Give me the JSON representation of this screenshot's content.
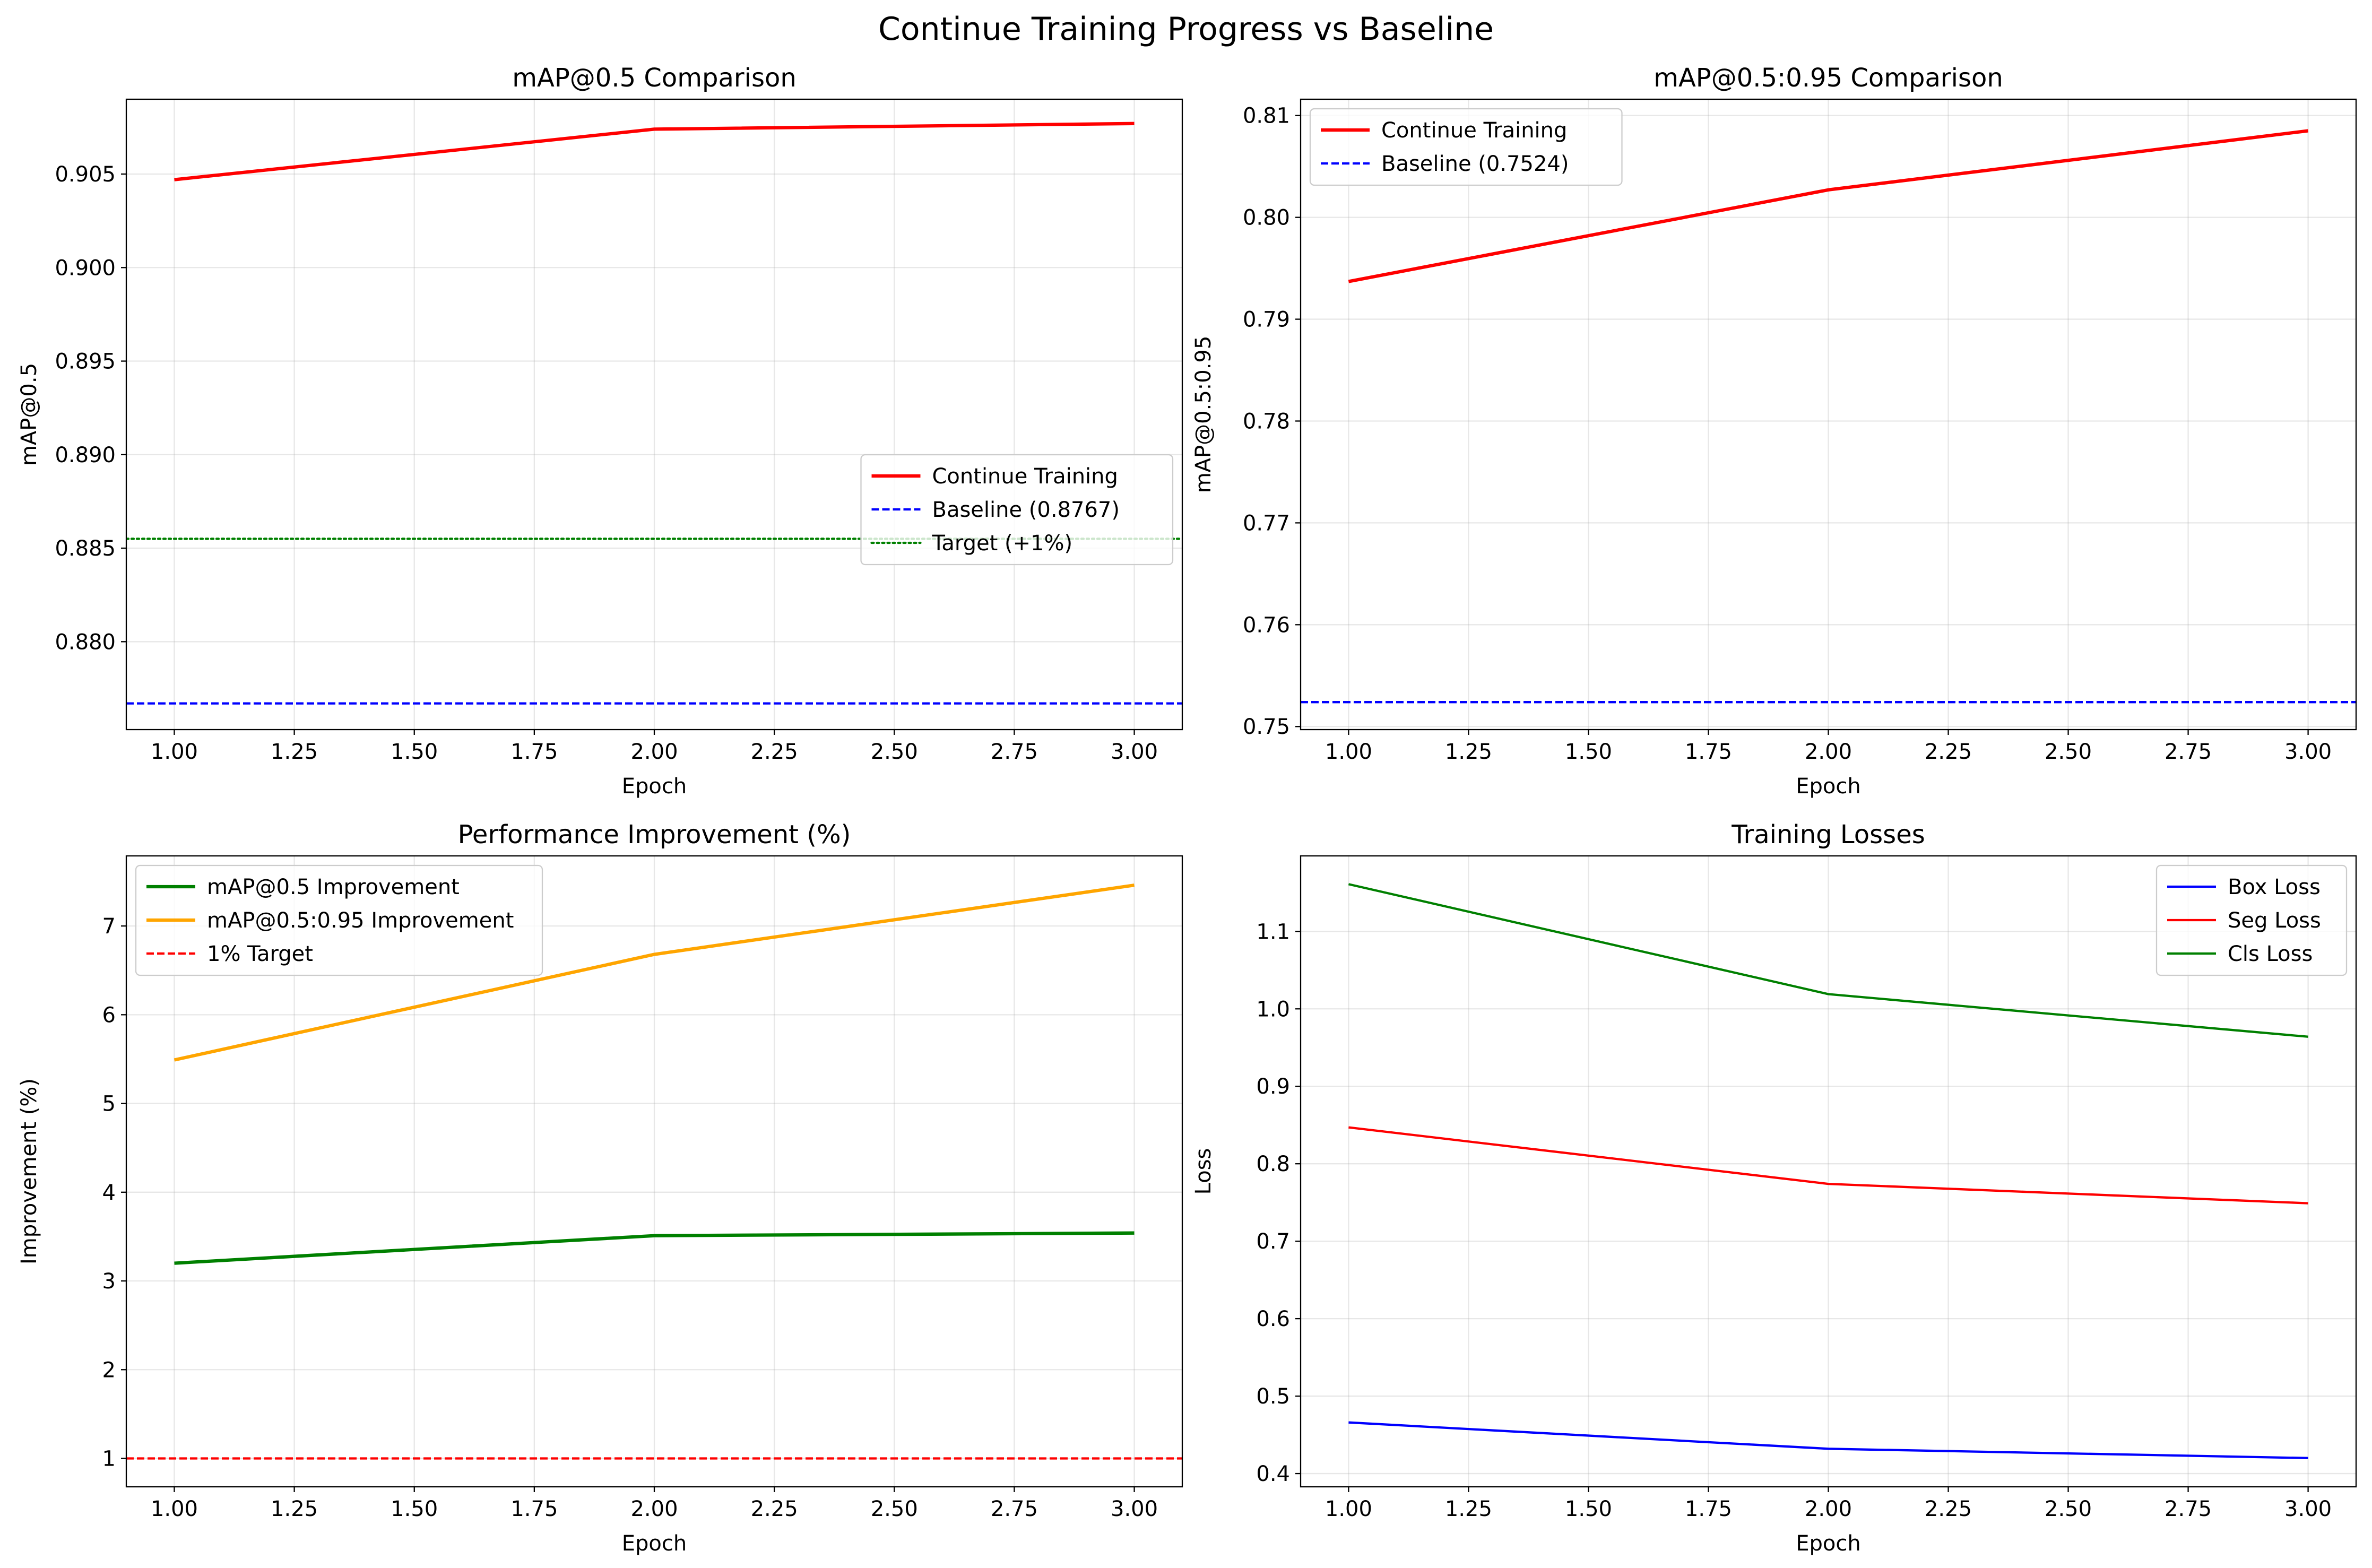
{
  "figure": {
    "title": "Continue Training Progress vs Baseline"
  },
  "chart_data": [
    {
      "type": "line",
      "title": "mAP@0.5 Comparison",
      "xlabel": "Epoch",
      "ylabel": "mAP@0.5",
      "xlim": [
        0.9,
        3.1
      ],
      "ylim": [
        0.8753,
        0.909
      ],
      "x_ticks": [
        1.0,
        1.25,
        1.5,
        1.75,
        2.0,
        2.25,
        2.5,
        2.75,
        3.0
      ],
      "x_tick_labels": [
        "1.00",
        "1.25",
        "1.50",
        "1.75",
        "2.00",
        "2.25",
        "2.50",
        "2.75",
        "3.00"
      ],
      "y_ticks": [
        0.88,
        0.885,
        0.89,
        0.895,
        0.9,
        0.905
      ],
      "y_tick_labels": [
        "0.880",
        "0.885",
        "0.890",
        "0.895",
        "0.900",
        "0.905"
      ],
      "grid": true,
      "legend_position": "center-right",
      "series": [
        {
          "name": "Continue Training",
          "x": [
            1,
            2,
            3
          ],
          "y": [
            0.9047,
            0.9074,
            0.9077
          ],
          "color": "#ff0000",
          "style": "solid",
          "width": 2.2
        },
        {
          "name": "Baseline (0.8767)",
          "hline": 0.8767,
          "color": "#0000ff",
          "style": "dashed",
          "width": 1.5
        },
        {
          "name": "Target (+1%)",
          "hline": 0.8855,
          "color": "#008000",
          "style": "dotted",
          "width": 1.5
        }
      ]
    },
    {
      "type": "line",
      "title": "mAP@0.5:0.95 Comparison",
      "xlabel": "Epoch",
      "ylabel": "mAP@0.5:0.95",
      "xlim": [
        0.9,
        3.1
      ],
      "ylim": [
        0.7497,
        0.8116
      ],
      "x_ticks": [
        1.0,
        1.25,
        1.5,
        1.75,
        2.0,
        2.25,
        2.5,
        2.75,
        3.0
      ],
      "x_tick_labels": [
        "1.00",
        "1.25",
        "1.50",
        "1.75",
        "2.00",
        "2.25",
        "2.50",
        "2.75",
        "3.00"
      ],
      "y_ticks": [
        0.75,
        0.76,
        0.77,
        0.78,
        0.79,
        0.8,
        0.81
      ],
      "y_tick_labels": [
        "0.75",
        "0.76",
        "0.77",
        "0.78",
        "0.79",
        "0.80",
        "0.81"
      ],
      "grid": true,
      "legend_position": "upper-left",
      "series": [
        {
          "name": "Continue Training",
          "x": [
            1,
            2,
            3
          ],
          "y": [
            0.7937,
            0.8027,
            0.8085
          ],
          "color": "#ff0000",
          "style": "solid",
          "width": 2.2
        },
        {
          "name": "Baseline (0.7524)",
          "hline": 0.7524,
          "color": "#0000ff",
          "style": "dashed",
          "width": 1.5
        }
      ]
    },
    {
      "type": "line",
      "title": "Performance Improvement (%)",
      "xlabel": "Epoch",
      "ylabel": "Improvement (%)",
      "xlim": [
        0.9,
        3.1
      ],
      "ylim": [
        0.68,
        7.79
      ],
      "x_ticks": [
        1.0,
        1.25,
        1.5,
        1.75,
        2.0,
        2.25,
        2.5,
        2.75,
        3.0
      ],
      "x_tick_labels": [
        "1.00",
        "1.25",
        "1.50",
        "1.75",
        "2.00",
        "2.25",
        "2.50",
        "2.75",
        "3.00"
      ],
      "y_ticks": [
        1,
        2,
        3,
        4,
        5,
        6,
        7
      ],
      "y_tick_labels": [
        "1",
        "2",
        "3",
        "4",
        "5",
        "6",
        "7"
      ],
      "grid": true,
      "legend_position": "upper-left",
      "series": [
        {
          "name": "mAP@0.5 Improvement",
          "x": [
            1,
            2,
            3
          ],
          "y": [
            3.2,
            3.51,
            3.54
          ],
          "color": "#008000",
          "style": "solid",
          "width": 2.2
        },
        {
          "name": "mAP@0.5:0.95 Improvement",
          "x": [
            1,
            2,
            3
          ],
          "y": [
            5.49,
            6.68,
            7.46
          ],
          "color": "#ffa500",
          "style": "solid",
          "width": 2.2
        },
        {
          "name": "1% Target",
          "hline": 1.0,
          "color": "#ff0000",
          "style": "dashed",
          "width": 1.5
        }
      ]
    },
    {
      "type": "line",
      "title": "Training Losses",
      "xlabel": "Epoch",
      "ylabel": "Loss",
      "xlim": [
        0.9,
        3.1
      ],
      "ylim": [
        0.3829,
        1.1975
      ],
      "x_ticks": [
        1.0,
        1.25,
        1.5,
        1.75,
        2.0,
        2.25,
        2.5,
        2.75,
        3.0
      ],
      "x_tick_labels": [
        "1.00",
        "1.25",
        "1.50",
        "1.75",
        "2.00",
        "2.25",
        "2.50",
        "2.75",
        "3.00"
      ],
      "y_ticks": [
        0.4,
        0.5,
        0.6,
        0.7,
        0.8,
        0.9,
        1.0,
        1.1
      ],
      "y_tick_labels": [
        "0.4",
        "0.5",
        "0.6",
        "0.7",
        "0.8",
        "0.9",
        "1.0",
        "1.1"
      ],
      "grid": true,
      "legend_position": "upper-right",
      "series": [
        {
          "name": "Box Loss",
          "x": [
            1,
            2,
            3
          ],
          "y": [
            0.466,
            0.432,
            0.42
          ],
          "color": "#0000ff",
          "style": "solid",
          "width": 1.5
        },
        {
          "name": "Seg Loss",
          "x": [
            1,
            2,
            3
          ],
          "y": [
            0.847,
            0.774,
            0.749
          ],
          "color": "#ff0000",
          "style": "solid",
          "width": 1.5
        },
        {
          "name": "Cls Loss",
          "x": [
            1,
            2,
            3
          ],
          "y": [
            1.161,
            1.019,
            0.964
          ],
          "color": "#008000",
          "style": "solid",
          "width": 1.5
        }
      ]
    }
  ]
}
